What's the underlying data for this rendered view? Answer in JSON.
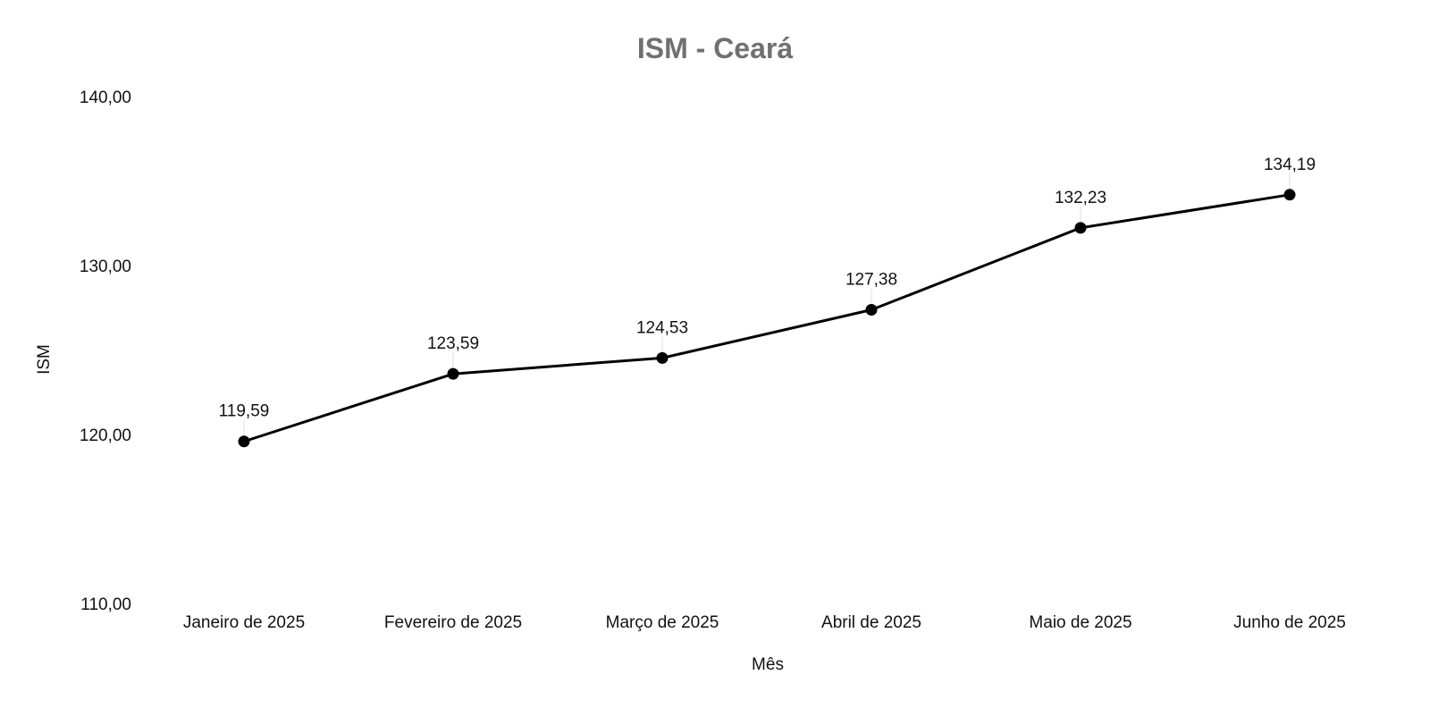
{
  "chart_data": {
    "type": "line",
    "title": "ISM - Ceará",
    "xlabel": "Mês",
    "ylabel": "ISM",
    "categories": [
      "Janeiro de 2025",
      "Fevereiro de 2025",
      "Março de 2025",
      "Abril de 2025",
      "Maio de 2025",
      "Junho de 2025"
    ],
    "series": [
      {
        "values": [
          119.59,
          123.59,
          124.53,
          127.38,
          132.23,
          134.19
        ],
        "labels": [
          "119,59",
          "123,59",
          "124,53",
          "127,38",
          "132,23",
          "134,19"
        ],
        "color": "#000000"
      }
    ],
    "ylim": [
      110,
      140
    ],
    "yticks": [
      110,
      120,
      130,
      140
    ],
    "ytick_labels": [
      "110,00",
      "120,00",
      "130,00",
      "140,00"
    ],
    "grid": false,
    "legend": "none",
    "title_color": "#707070"
  }
}
